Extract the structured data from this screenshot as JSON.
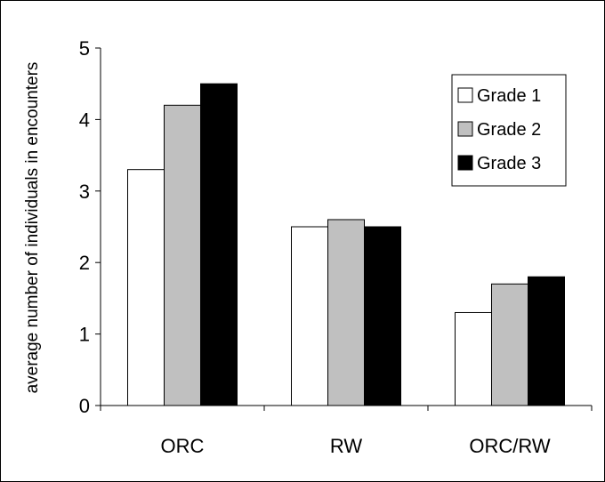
{
  "chart_data": {
    "type": "bar",
    "title": "",
    "xlabel": "",
    "ylabel": "average number of individuals in encounters",
    "ylim": [
      0,
      5
    ],
    "yticks": [
      "0",
      "1",
      "2",
      "3",
      "4",
      "5"
    ],
    "categories": [
      "ORC",
      "RW",
      "ORC/RW"
    ],
    "series": [
      {
        "name": "Grade 1",
        "values": [
          3.3,
          2.5,
          1.3
        ],
        "color": "#ffffff"
      },
      {
        "name": "Grade 2",
        "values": [
          4.2,
          2.6,
          1.7
        ],
        "color": "#c0c0c0"
      },
      {
        "name": "Grade 3",
        "values": [
          4.5,
          2.5,
          1.8
        ],
        "color": "#000000"
      }
    ],
    "grid": false,
    "legend": "top-right"
  }
}
